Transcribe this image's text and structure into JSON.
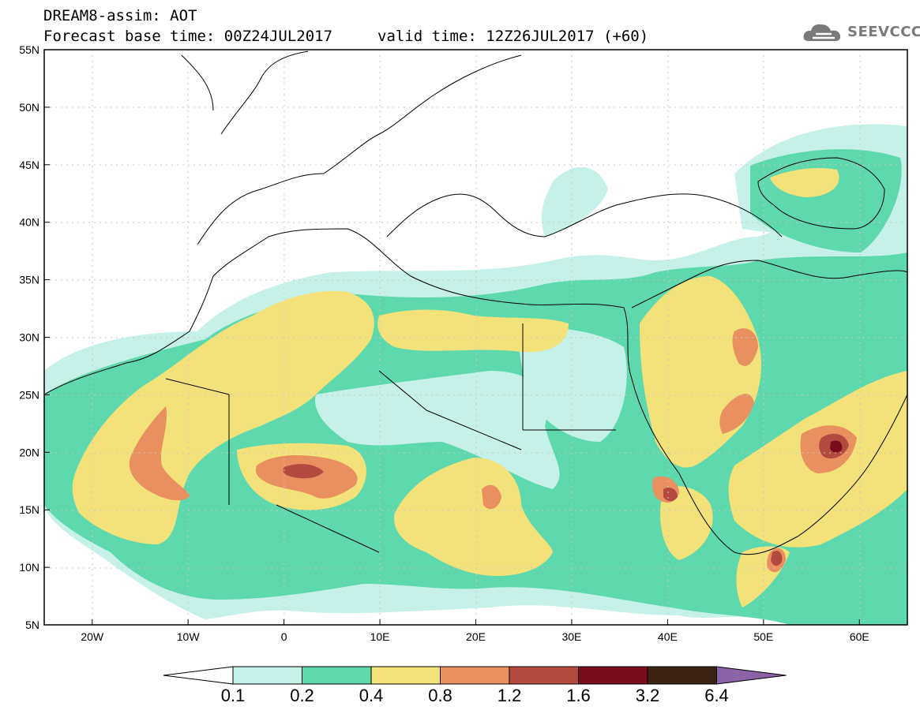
{
  "header": {
    "title": "DREAM8-assim: AOT",
    "base_time": "Forecast base time: 00Z24JUL2017",
    "valid_time": "valid time: 12Z26JUL2017 (+60)",
    "logo_text": "SEEVCCC"
  },
  "map": {
    "lon_range": [
      -25,
      65
    ],
    "lat_range": [
      5,
      55
    ],
    "lat_labels": [
      "55N",
      "50N",
      "45N",
      "40N",
      "35N",
      "30N",
      "25N",
      "20N",
      "15N",
      "10N",
      "5N"
    ],
    "lon_labels": [
      "20W",
      "10W",
      "0",
      "10E",
      "20E",
      "30E",
      "40E",
      "50E",
      "60E"
    ]
  },
  "colorbar": {
    "labels": [
      "0.1",
      "0.2",
      "0.4",
      "0.8",
      "1.2",
      "1.6",
      "3.2",
      "6.4"
    ],
    "colors": [
      "#c5f1e8",
      "#5ed8ad",
      "#f3e27a",
      "#e8905f",
      "#b44a3e",
      "#7a0a1e",
      "#3a2312",
      "#8a63a8"
    ],
    "low_color": "#ffffff"
  }
}
